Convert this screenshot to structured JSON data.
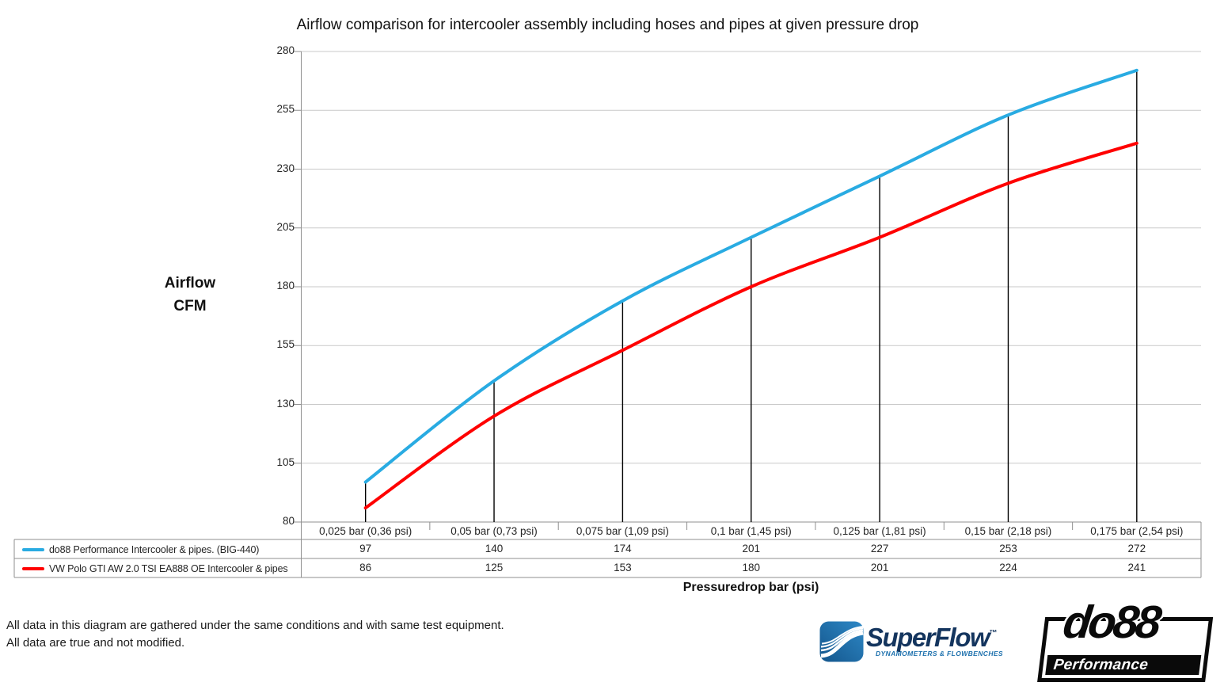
{
  "chart_data": {
    "type": "line",
    "title": "Airflow comparison for intercooler assembly including hoses and pipes at given pressure drop",
    "categories": [
      "0,025 bar (0,36 psi)",
      "0,05 bar (0,73 psi)",
      "0,075 bar (1,09 psi)",
      "0,1 bar (1,45 psi)",
      "0,125 bar (1,81 psi)",
      "0,15 bar (2,18 psi)",
      "0,175 bar (2,54 psi)"
    ],
    "series": [
      {
        "name": "do88 Performance Intercooler & pipes. (BIG-440)",
        "color": "#29ABE2",
        "values": [
          97,
          140,
          174,
          201,
          227,
          253,
          272
        ]
      },
      {
        "name": "VW Polo GTI AW 2.0 TSI EA888 OE Intercooler & pipes",
        "color": "#FF0000",
        "values": [
          86,
          125,
          153,
          180,
          201,
          224,
          241
        ]
      }
    ],
    "xlabel": "Pressuredrop bar (psi)",
    "ylabel": "Airflow CFM",
    "ylim": [
      80,
      280
    ],
    "y_ticks": [
      280,
      255,
      230,
      205,
      180,
      155,
      130,
      105,
      80
    ],
    "grid": "horizontal",
    "drop_lines": true,
    "legend_position": "table-left",
    "data_table_shown": true
  },
  "y_axis": {
    "label_line1": "Airflow",
    "label_line2": "CFM"
  },
  "x_axis": {
    "label": "Pressuredrop bar (psi)"
  },
  "footer": {
    "line1": "All data in this diagram are gathered under the same conditions and with same test equipment.",
    "line2": "All data are true and not modified."
  },
  "logos": {
    "superflow": {
      "name": "SuperFlow",
      "tm": "™",
      "subtitle": "DYNAMOMETERS & FLOWBENCHES"
    },
    "do88": {
      "name": "do88",
      "subtitle": "Performance"
    }
  },
  "colors": {
    "series_do88": "#29ABE2",
    "series_oe": "#FF0000",
    "gridline": "#C9C9C9",
    "axis_and_borders": "#8F8F8F",
    "drop_line": "#000000",
    "superflow_navy": "#14355E",
    "superflow_blue": "#1C70AD",
    "do88_black": "#0A0A0A"
  }
}
